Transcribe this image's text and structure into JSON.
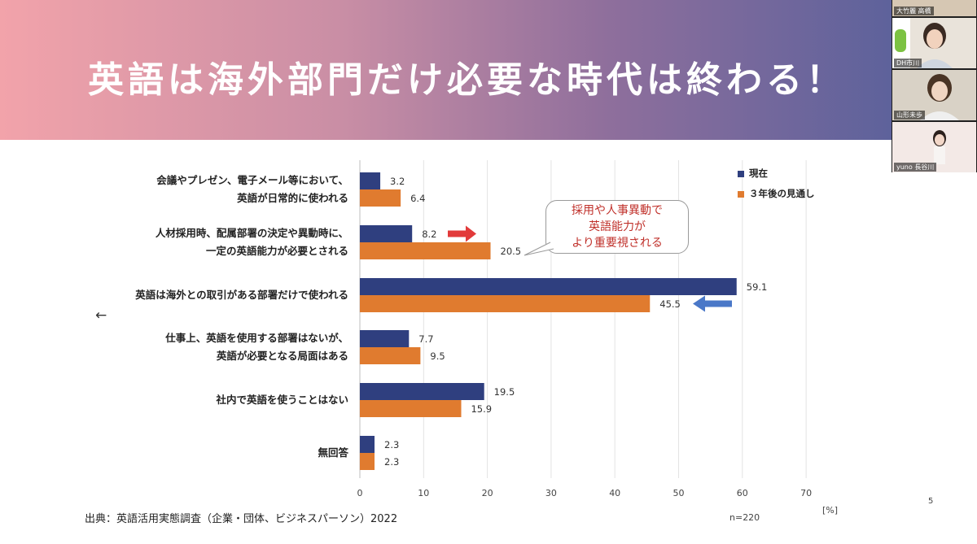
{
  "slide": {
    "title": "英語は海外部門だけ必要な時代は終わる！",
    "source": "出典：英語活用実態調査（企業・団体、ビジネスパーソン）2022",
    "n_label": "n=220",
    "unit": "[%]",
    "page_number": "5"
  },
  "callout": {
    "lines": [
      "採用や人事異動で",
      "英語能力が",
      "より重要視される"
    ]
  },
  "categories_display": [
    [
      "会議やプレゼン、電子メール等において、",
      "英語が日常的に使われる"
    ],
    [
      "人材採用時、配属部署の決定や異動時に、",
      "一定の英語能力が必要とされる"
    ],
    [
      "英語は海外との取引がある部署だけで使われる"
    ],
    [
      "仕事上、英語を使用する部署はないが、",
      "英語が必要となる局面はある"
    ],
    [
      "社内で英語を使うことはない"
    ],
    [
      "無回答"
    ]
  ],
  "video_participants": [
    {
      "name": "大竹麗 高橋"
    },
    {
      "name": "DH市川"
    },
    {
      "name": "山形未歩"
    },
    {
      "name": "yuno 長谷川"
    }
  ],
  "colors": {
    "current": "#2f3f7f",
    "future": "#e07b2f",
    "red_arrow": "#e23a3a",
    "blue_arrow": "#4a78c8",
    "callout_text": "#c0312b"
  },
  "chart_data": {
    "type": "bar",
    "orientation": "horizontal",
    "categories": [
      "会議やプレゼン、電子メール等において、英語が日常的に使われる",
      "人材採用時、配属部署の決定や異動時に、一定の英語能力が必要とされる",
      "英語は海外との取引がある部署だけで使われる",
      "仕事上、英語を使用する部署はないが、英語が必要となる局面はある",
      "社内で英語を使うことはない",
      "無回答"
    ],
    "series": [
      {
        "name": "現在",
        "values": [
          3.2,
          8.2,
          59.1,
          7.7,
          19.5,
          2.3
        ]
      },
      {
        "name": "３年後の見通し",
        "values": [
          6.4,
          20.5,
          45.5,
          9.5,
          15.9,
          2.3
        ]
      }
    ],
    "data_labels": [
      [
        "3.2",
        "8.2",
        "59.1",
        "7.7",
        "19.5",
        "2.3"
      ],
      [
        "6.4",
        "20.5",
        "45.5",
        "9.5",
        "15.9",
        "2.3"
      ]
    ],
    "xlim": [
      0,
      70
    ],
    "x_ticks": [
      0,
      10,
      20,
      30,
      40,
      50,
      60,
      70
    ],
    "x_tick_labels": [
      "0",
      "10",
      "20",
      "30",
      "40",
      "50",
      "60",
      "70"
    ],
    "grid": true,
    "legend_position": "top-right"
  }
}
